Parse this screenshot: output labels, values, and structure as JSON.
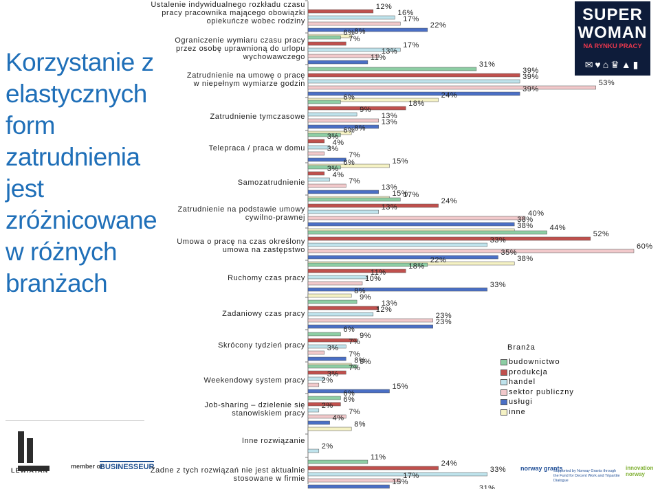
{
  "side_title": [
    "Korzystanie z",
    "elastycznych",
    "form",
    "zatrudnienia",
    "jest",
    "zróżnicowane",
    "w różnych",
    "branżach"
  ],
  "logos": {
    "superwoman_line1": "SUPER",
    "superwoman_line2": "WOMAN",
    "superwoman_line3": "NA RYNKU PRACY",
    "lewiatan": "LEWIATAN",
    "member_of": "member of",
    "businesseurope": "BUSINESSEUR",
    "norway_grants": "norway grants",
    "supported_by": "Supported by Norway Grants through the Fund for Decent Work and Tripartite Dialogue",
    "innovation_norway": "innovation norway"
  },
  "colors": {
    "budownictwo": "#8dcea4",
    "produkcja": "#c0504d",
    "handel": "#bfe3ec",
    "sektor_publiczny": "#f2c9cb",
    "uslugi": "#4a6fc5",
    "inne": "#f5f2c4"
  },
  "chart_data": {
    "type": "bar",
    "orientation": "horizontal",
    "legend_title": "Branża",
    "legend_position": "right",
    "series": [
      {
        "name": "budownictwo"
      },
      {
        "name": "produkcja"
      },
      {
        "name": "handel"
      },
      {
        "name": "sektor publiczny"
      },
      {
        "name": "usługi"
      },
      {
        "name": "inne"
      }
    ],
    "categories": [
      {
        "label": [
          "Ustalenie indywidualnego rozkładu czasu",
          "pracy pracownika mającego obowiązki",
          "opiekuńcze wobec rodziny"
        ],
        "values": [
          null,
          12,
          16,
          17,
          22,
          8
        ],
        "labels": [
          "",
          "12%",
          "16%",
          "17%",
          "22%",
          "8%"
        ]
      },
      {
        "label": [
          "Ograniczenie wymiaru czasu pracy",
          "przez osobę uprawnioną do urlopu",
          "wychowawczego"
        ],
        "values": [
          6,
          7,
          17,
          13,
          11,
          null
        ],
        "labels": [
          "6%",
          "7%",
          "17%",
          "13%",
          "11%",
          ""
        ]
      },
      {
        "label": [
          "Zatrudnienie na umowę o pracę",
          "w niepełnym wymiarze godzin"
        ],
        "values": [
          31,
          39,
          39,
          53,
          39,
          24
        ],
        "labels": [
          "31%",
          "39%",
          "39%",
          "53%",
          "39%",
          "24%"
        ]
      },
      {
        "label": [
          "Zatrudnienie tymczasowe"
        ],
        "values": [
          6,
          18,
          9,
          13,
          13,
          8
        ],
        "labels": [
          "6%",
          "18%",
          "9%",
          "13%",
          "13%",
          "8%"
        ]
      },
      {
        "label": [
          "Telepraca / praca w domu"
        ],
        "values": [
          6,
          3,
          4,
          3,
          7,
          15
        ],
        "labels": [
          "6%",
          "3%",
          "4%",
          "3%",
          "7%",
          "15%"
        ]
      },
      {
        "label": [
          "Samozatrudnienie"
        ],
        "values": [
          6,
          3,
          4,
          7,
          13,
          15
        ],
        "labels": [
          "6%",
          "3%",
          "4%",
          "7%",
          "13%",
          "15%"
        ]
      },
      {
        "label": [
          "Zatrudnienie na podstawie umowy",
          "cywilno-prawnej"
        ],
        "values": [
          17,
          24,
          13,
          40,
          38,
          38
        ],
        "labels": [
          "17%",
          "24%",
          "13%",
          "40%",
          "38%",
          "38%"
        ]
      },
      {
        "label": [
          "Umowa o pracę na czas określony",
          "umowa na zastępstwo"
        ],
        "values": [
          44,
          52,
          33,
          60,
          35,
          38
        ],
        "labels": [
          "44%",
          "52%",
          "33%",
          "60%",
          "35%",
          "38%"
        ]
      },
      {
        "label": [
          "Ruchomy czas pracy"
        ],
        "values": [
          22,
          18,
          11,
          10,
          33,
          8
        ],
        "labels": [
          "22%",
          "18%",
          "11%",
          "10%",
          "33%",
          "8%"
        ]
      },
      {
        "label": [
          "Zadaniowy czas pracy"
        ],
        "values": [
          9,
          13,
          12,
          23,
          23,
          null
        ],
        "labels": [
          "9%",
          "13%",
          "12%",
          "23%",
          "23%",
          ""
        ]
      },
      {
        "label": [
          "Skrócony tydzień pracy"
        ],
        "values": [
          6,
          9,
          7,
          3,
          7,
          8
        ],
        "labels": [
          "6%",
          "9%",
          "7%",
          "3%",
          "7%",
          "8%"
        ]
      },
      {
        "label": [
          "Weekendowy system pracy"
        ],
        "values": [
          9,
          7,
          3,
          2,
          15,
          null
        ],
        "labels": [
          "9%",
          "7%",
          "3%",
          "2%",
          "15%",
          ""
        ]
      },
      {
        "label": [
          "Job-sharing – dzielenie się",
          "stanowiskiem pracy"
        ],
        "values": [
          6,
          6,
          2,
          7,
          4,
          8
        ],
        "labels": [
          "6%",
          "6%",
          "2%",
          "7%",
          "4%",
          "8%"
        ]
      },
      {
        "label": [
          "Inne rozwiązanie"
        ],
        "values": [
          null,
          null,
          2,
          null,
          null,
          null
        ],
        "labels": [
          "",
          "",
          "2%",
          "",
          "",
          ""
        ]
      },
      {
        "label": [
          "Żadne z tych rozwiązań nie jest aktualnie",
          "stosowane w firmie"
        ],
        "values": [
          11,
          24,
          33,
          17,
          15,
          31
        ],
        "labels": [
          "11%",
          "24%",
          "33%",
          "17%",
          "15%",
          "31%"
        ]
      }
    ]
  }
}
